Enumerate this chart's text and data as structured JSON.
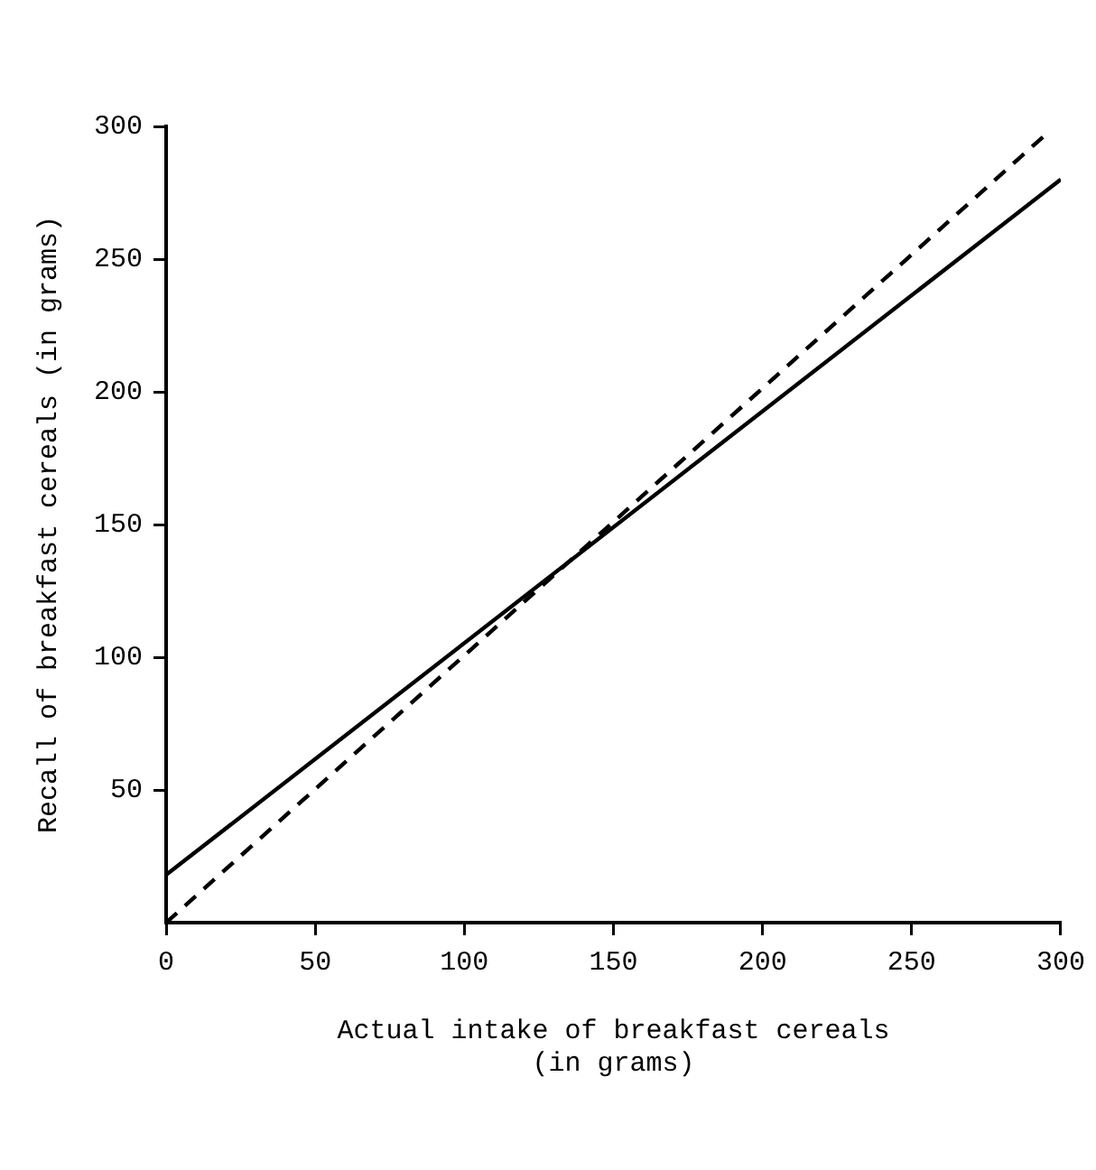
{
  "chart_data": {
    "type": "line",
    "xlabel": "Actual intake of breakfast cereals\n(in grams)",
    "ylabel": "Recall of breakfast cereals (in grams)",
    "xlim": [
      0,
      300
    ],
    "xticks": [
      0,
      50,
      100,
      150,
      200,
      250,
      300
    ],
    "ylim": [
      0,
      300
    ],
    "yticks": [
      50,
      100,
      150,
      200,
      250,
      300
    ],
    "grid": false,
    "legend": false,
    "marker": "none",
    "series": [
      {
        "color": "#000000",
        "line_style": "solid",
        "x": [
          0,
          300
        ],
        "values": [
          18,
          280
        ]
      },
      {
        "color": "#000000",
        "line_style": "dashed",
        "x": [
          0,
          295
        ],
        "values": [
          0,
          297
        ]
      }
    ]
  }
}
